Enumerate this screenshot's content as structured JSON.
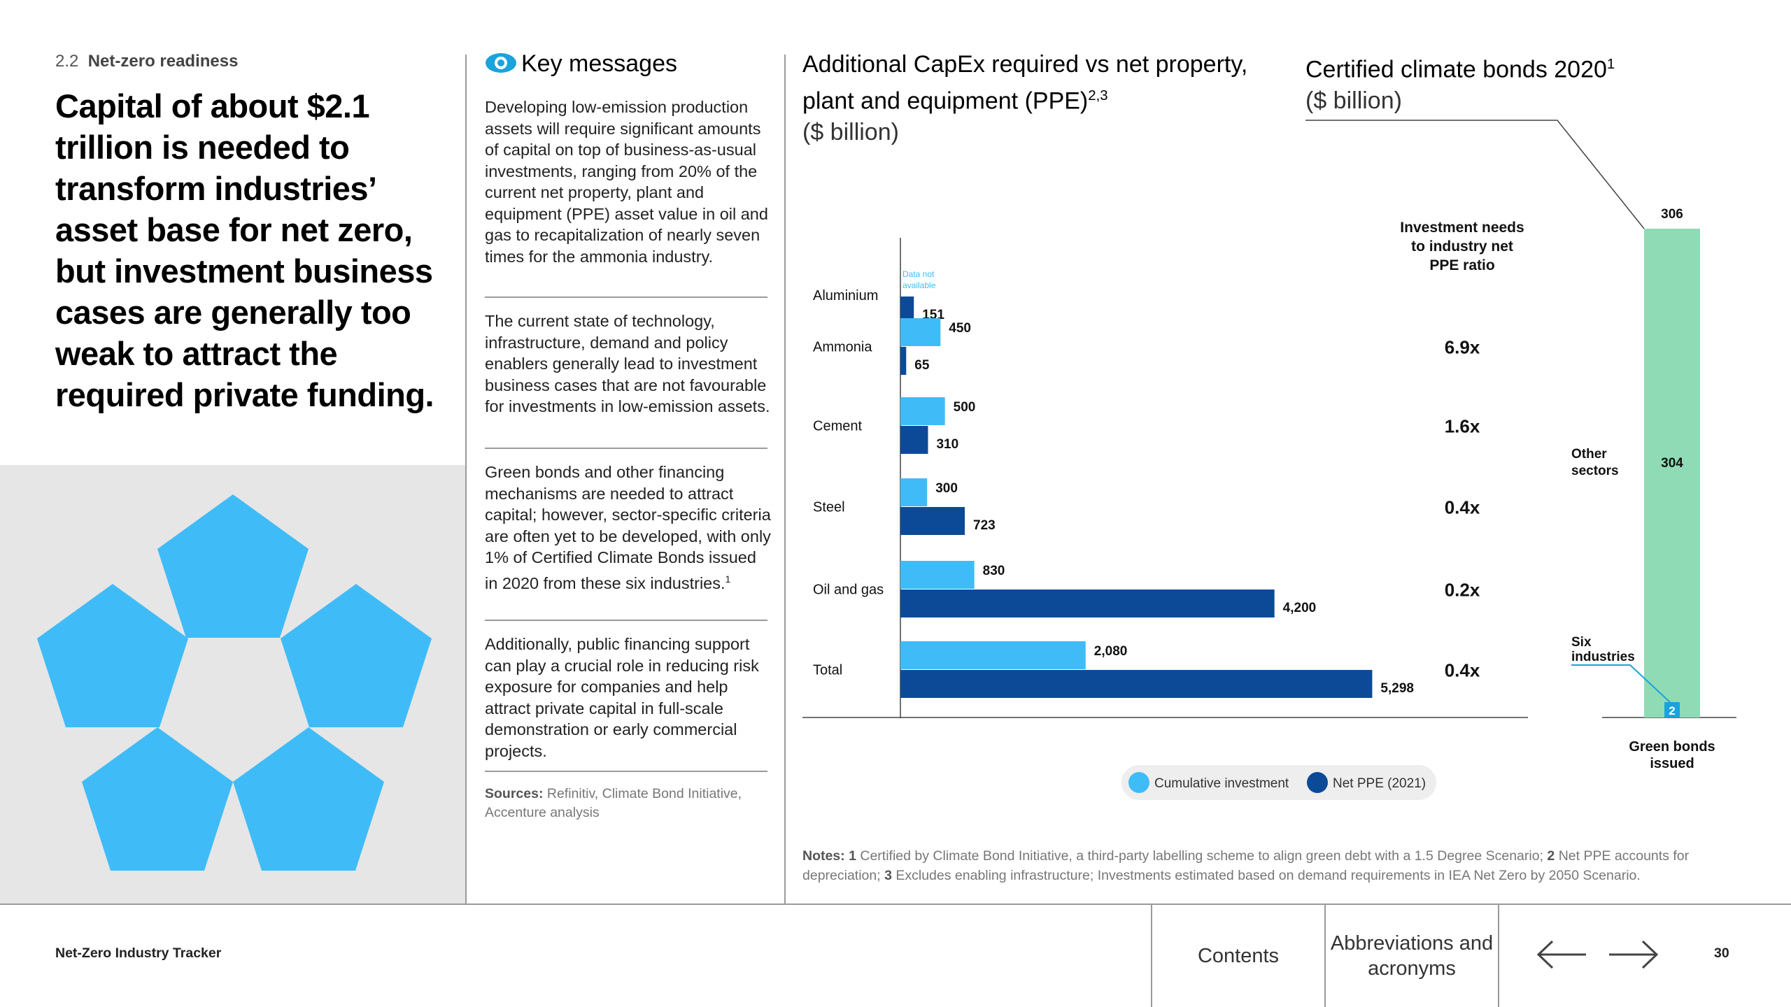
{
  "section": {
    "number": "2.2",
    "title": "Net-zero readiness"
  },
  "headline": "Capital of about $2.1 trillion is needed to transform industries’ asset base for net zero, but investment business cases are generally too weak to attract the required private funding.",
  "key_messages": {
    "title": "Key messages",
    "paragraphs": [
      "Developing low-emission production assets will require significant amounts of capital on top of business-as-usual investments, ranging from 20% of the current net property, plant and equipment (PPE) asset value in oil and gas to recapitalization of nearly seven times for the ammonia industry.",
      "The current state of technology, infrastructure, demand and policy enablers generally lead to investment business cases that are not favourable for investments in low-emission assets.",
      "Green bonds and other financing mechanisms are needed to attract capital; however, sector-specific criteria are often yet to be developed, with only 1% of Certified Climate Bonds issued in 2020 from these six industries.",
      "Additionally, public financing support can play a crucial role in reducing risk exposure for companies and help attract private capital in full-scale demonstration or early commercial projects."
    ],
    "paragraph3_sup": "1",
    "sources_label": "Sources:",
    "sources_text": "Refinitiv, Climate Bond Initiative, Accenture analysis"
  },
  "capex_chart": {
    "title": "Additional CapEx required vs net property, plant and equipment (PPE)",
    "title_sup": "2,3",
    "unit": "($ billion)"
  },
  "bonds_chart": {
    "title": "Certified climate bonds 2020",
    "title_sup": "1",
    "unit": "($ billion)"
  },
  "chart_data": [
    {
      "type": "bar",
      "orientation": "horizontal",
      "title": "Additional CapEx required vs net property, plant and equipment (PPE)",
      "unit": "($ billion)",
      "categories": [
        "Aluminium",
        "Ammonia",
        "Cement",
        "Steel",
        "Oil and gas",
        "Total"
      ],
      "series": [
        {
          "name": "Cumulative investment",
          "color": "#3fbcf7",
          "values": [
            null,
            450,
            500,
            300,
            830,
            2080
          ],
          "labels": [
            "Data not available",
            "450",
            "500",
            "300",
            "830",
            "2,080"
          ]
        },
        {
          "name": "Net PPE (2021)",
          "color": "#0c4a97",
          "values": [
            151,
            65,
            310,
            723,
            4200,
            5298
          ],
          "labels": [
            "151",
            "65",
            "310",
            "723",
            "4,200",
            "5,298"
          ]
        }
      ],
      "xlim": [
        0,
        6000
      ],
      "ratio_header": "Investment needs to industry net PPE ratio",
      "ratios": [
        "",
        "6.9x",
        "1.6x",
        "0.4x",
        "0.2x",
        "0.4x"
      ],
      "legend": [
        "Cumulative investment",
        "Net PPE (2021)"
      ]
    },
    {
      "type": "bar",
      "orientation": "vertical-stacked",
      "title": "Certified climate bonds 2020",
      "unit": "($ billion)",
      "categories": [
        "Green bonds issued"
      ],
      "total": 306,
      "total_label": "306",
      "segments": [
        {
          "name": "Six industries",
          "value": 2,
          "label": "2",
          "color": "#1aa3dc"
        },
        {
          "name": "Other sectors",
          "value": 304,
          "label": "304",
          "color": "#8fdbb5"
        }
      ],
      "segment_labels": [
        "Six industries",
        "Other sectors"
      ],
      "xlabel": "Green bonds issued"
    }
  ],
  "notes": {
    "label": "Notes:",
    "items": [
      {
        "num": "1",
        "text": "Certified by Climate Bond Initiative, a third-party labelling scheme to align green debt with a 1.5 Degree Scenario;"
      },
      {
        "num": "2",
        "text": "Net PPE accounts for depreciation;"
      },
      {
        "num": "3",
        "text": "Excludes enabling infrastructure; Investments estimated based on demand requirements in IEA Net Zero by 2050 Scenario."
      }
    ]
  },
  "footer": {
    "title": "Net-Zero Industry Tracker",
    "contents_label": "Contents",
    "abbreviations_label": "Abbreviations and acronyms",
    "page_number": "30"
  },
  "colors": {
    "light_blue": "#3fbcf7",
    "dark_blue": "#0c4a97",
    "green": "#8fdbb5",
    "mid_blue": "#1aa3dc",
    "panel_grey": "#e6e6e6"
  }
}
